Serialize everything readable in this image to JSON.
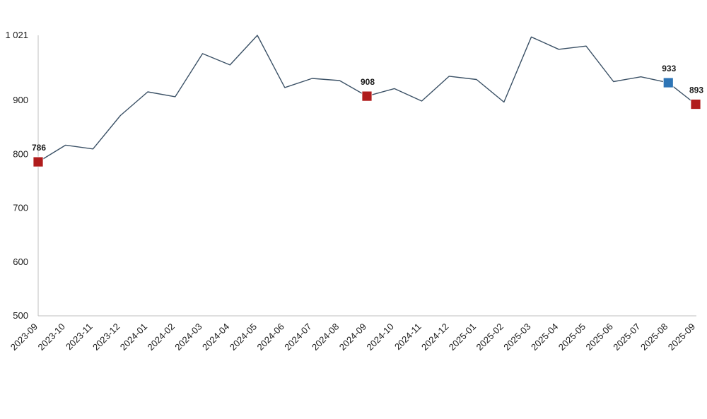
{
  "chart_data": {
    "type": "line",
    "title": "",
    "xlabel": "",
    "ylabel": "",
    "categories": [
      "2023-09",
      "2023-10",
      "2023-11",
      "2023-12",
      "2024-01",
      "2024-02",
      "2024-03",
      "2024-04",
      "2024-05",
      "2024-06",
      "2024-07",
      "2024-08",
      "2024-09",
      "2024-10",
      "2024-11",
      "2024-12",
      "2025-01",
      "2025-02",
      "2025-03",
      "2025-04",
      "2025-05",
      "2025-06",
      "2025-07",
      "2025-08",
      "2025-09"
    ],
    "series": [
      {
        "values": [
          786,
          817,
          810,
          872,
          916,
          907,
          987,
          966,
          1021,
          924,
          941,
          937,
          908,
          922,
          899,
          945,
          939,
          897,
          1018,
          995,
          1001,
          935,
          944,
          933,
          893
        ]
      }
    ],
    "ylim": [
      500,
      1021
    ],
    "yticks": [
      500,
      600,
      700,
      800,
      900
    ],
    "ytick_labels": [
      "500",
      "600",
      "700",
      "800",
      "900"
    ],
    "ymax_label": "1 021",
    "grid": false,
    "legend": "none",
    "highlights": [
      {
        "index": 0,
        "label": "786",
        "color": "#b01c1c"
      },
      {
        "index": 12,
        "label": "908",
        "color": "#b01c1c"
      },
      {
        "index": 23,
        "label": "933",
        "color": "#2e75b6"
      },
      {
        "index": 24,
        "label": "893",
        "color": "#b01c1c"
      }
    ],
    "colors": {
      "line": "#3b5166",
      "axis": "#bfbfbf"
    }
  }
}
